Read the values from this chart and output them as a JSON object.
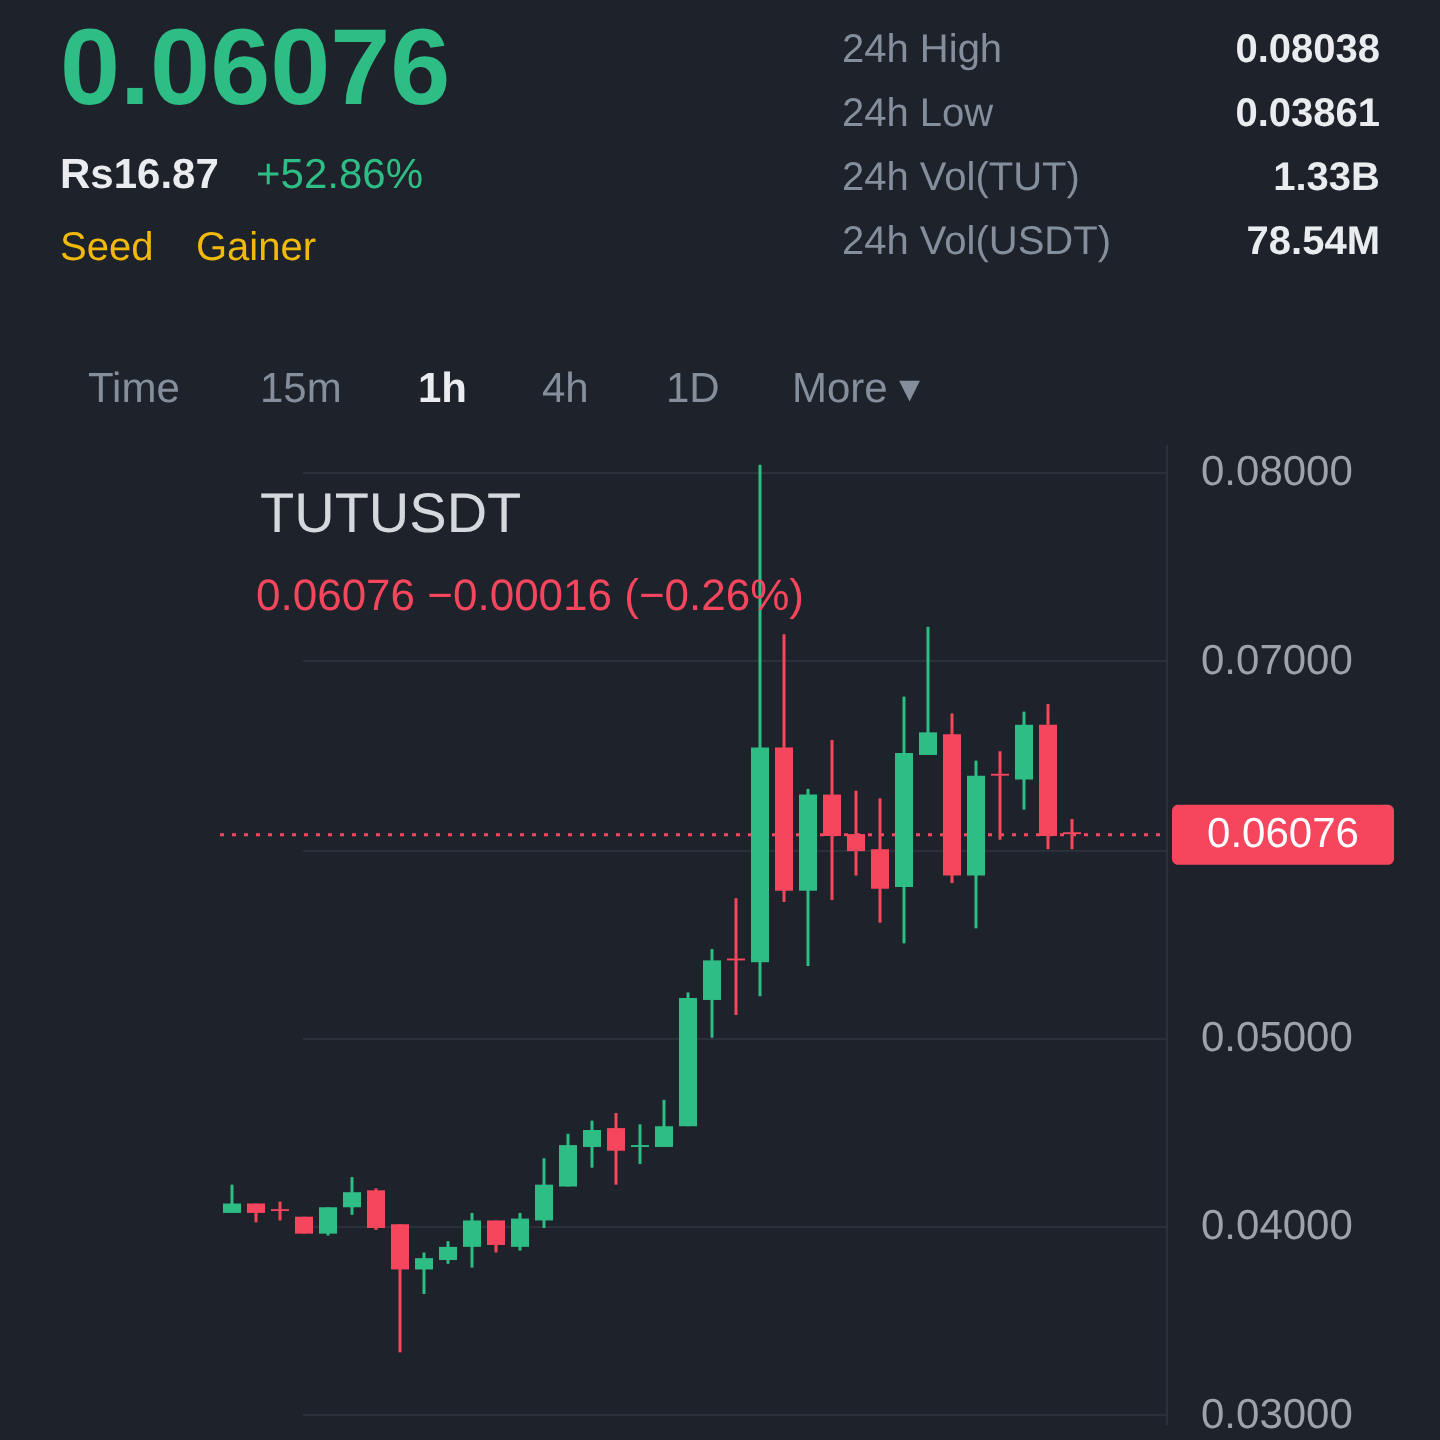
{
  "chart_data": {
    "type": "candlestick",
    "title": "TUTUSDT",
    "subtitle": "0.06076  −0.00016 (−0.26%)",
    "categories": [
      null,
      null,
      null,
      null,
      null,
      null,
      null,
      null,
      null,
      null,
      null,
      null,
      null,
      null,
      null,
      null,
      null,
      null,
      null,
      null,
      null,
      null,
      null,
      null,
      null,
      null,
      null,
      null,
      null,
      null,
      null,
      null,
      null,
      null,
      null,
      null
    ],
    "ohlc": [
      [
        0.0407,
        0.0422,
        0.0407,
        0.0412
      ],
      [
        0.0412,
        0.0412,
        0.0402,
        0.0407
      ],
      [
        0.0409,
        0.0413,
        0.0403,
        0.0408
      ],
      [
        0.0405,
        0.0405,
        0.0396,
        0.0396
      ],
      [
        0.0396,
        0.041,
        0.0395,
        0.041
      ],
      [
        0.041,
        0.0426,
        0.0406,
        0.0418
      ],
      [
        0.0419,
        0.042,
        0.0398,
        0.0399
      ],
      [
        0.0401,
        0.0401,
        0.0333,
        0.0377
      ],
      [
        0.0377,
        0.0386,
        0.0364,
        0.0383
      ],
      [
        0.0382,
        0.0392,
        0.038,
        0.0389
      ],
      [
        0.0389,
        0.0407,
        0.0378,
        0.0403
      ],
      [
        0.0403,
        0.0403,
        0.0386,
        0.039
      ],
      [
        0.0389,
        0.0407,
        0.0387,
        0.0404
      ],
      [
        0.0403,
        0.0436,
        0.0399,
        0.0422
      ],
      [
        0.0421,
        0.0449,
        0.0421,
        0.0443
      ],
      [
        0.0442,
        0.0456,
        0.0431,
        0.0451
      ],
      [
        0.0452,
        0.046,
        0.0422,
        0.044
      ],
      [
        0.0442,
        0.0454,
        0.0433,
        0.0443
      ],
      [
        0.0442,
        0.0467,
        0.0442,
        0.0453
      ],
      [
        0.0453,
        0.0524,
        0.0453,
        0.0521
      ],
      [
        0.052,
        0.0547,
        0.05,
        0.0541
      ],
      [
        0.0542,
        0.0574,
        0.0512,
        0.0541
      ],
      [
        0.054,
        0.0804,
        0.0522,
        0.0654
      ],
      [
        0.0654,
        0.0714,
        0.0572,
        0.0578
      ],
      [
        0.0578,
        0.0632,
        0.0538,
        0.0629
      ],
      [
        0.0629,
        0.0658,
        0.0573,
        0.0607
      ],
      [
        0.0608,
        0.0631,
        0.0586,
        0.0599
      ],
      [
        0.06,
        0.0627,
        0.0561,
        0.0579
      ],
      [
        0.058,
        0.0681,
        0.055,
        0.0651
      ],
      [
        0.065,
        0.0718,
        0.065,
        0.0662
      ],
      [
        0.0661,
        0.0672,
        0.0582,
        0.0586
      ],
      [
        0.0586,
        0.0647,
        0.0558,
        0.0639
      ],
      [
        0.064,
        0.0652,
        0.0605,
        0.0639
      ],
      [
        0.0637,
        0.0673,
        0.0621,
        0.0666
      ],
      [
        0.0666,
        0.0677,
        0.06,
        0.0607
      ],
      [
        0.0609,
        0.0616,
        0.06,
        0.0608
      ]
    ],
    "colors": [
      "#2ebd85",
      "#f6465d",
      "#f6465d",
      "#f6465d",
      "#2ebd85",
      "#2ebd85",
      "#f6465d",
      "#f6465d",
      "#2ebd85",
      "#2ebd85",
      "#2ebd85",
      "#f6465d",
      "#2ebd85",
      "#2ebd85",
      "#2ebd85",
      "#2ebd85",
      "#f6465d",
      "#2ebd85",
      "#2ebd85",
      "#2ebd85",
      "#2ebd85",
      "#f6465d",
      "#2ebd85",
      "#f6465d",
      "#2ebd85",
      "#f6465d",
      "#f6465d",
      "#f6465d",
      "#2ebd85",
      "#2ebd85",
      "#f6465d",
      "#2ebd85",
      "#f6465d",
      "#2ebd85",
      "#f6465d",
      "#f6465d"
    ],
    "ylim": [
      0.0295,
      0.0815
    ],
    "yticks": [
      {
        "value": 0.03,
        "label": "0.03000"
      },
      {
        "value": 0.04,
        "label": "0.04000"
      },
      {
        "value": 0.05,
        "label": "0.05000"
      },
      {
        "value": 0.06,
        "label": null
      },
      {
        "value": 0.07,
        "label": "0.07000"
      },
      {
        "value": 0.08,
        "label": "0.08000"
      }
    ],
    "tick_labels": "y",
    "grid": "y",
    "ref_lines": [
      {
        "axis": "y",
        "value": 0.06076,
        "label": "0.06076",
        "color": "#f6465d",
        "line_style": "dotted"
      }
    ],
    "annotations": [
      "0.06076",
      "Rs16.87",
      "+52.86%",
      "Seed",
      "Gainer",
      "24h High",
      "0.08038",
      "24h Low",
      "0.03861",
      "24h Vol(TUT)",
      "1.33B",
      "24h Vol(USDT)",
      "78.54M",
      "Time",
      "15m",
      "1h",
      "4h",
      "1D",
      "More ▾"
    ]
  }
}
